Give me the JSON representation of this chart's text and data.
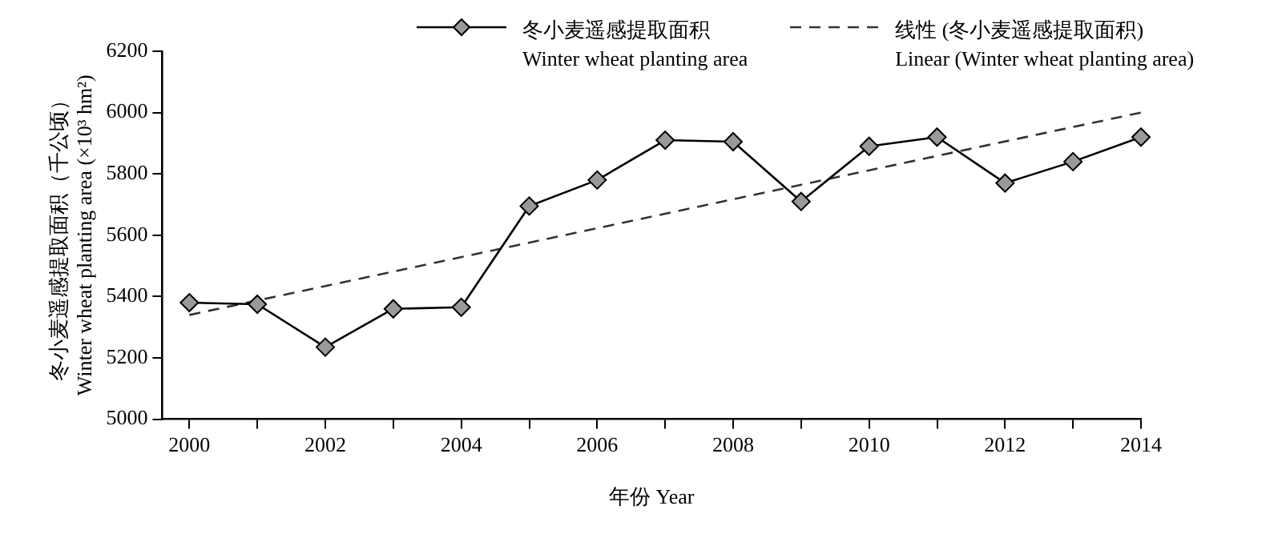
{
  "chart_data": {
    "type": "line",
    "xlabel": "年份 Year",
    "ylabel": [
      "冬小麦遥感提取面积（千公顷）",
      "Winter wheat planting area (×10³ hm²)"
    ],
    "x": [
      2000,
      2001,
      2002,
      2003,
      2004,
      2005,
      2006,
      2007,
      2008,
      2009,
      2010,
      2011,
      2012,
      2013,
      2014
    ],
    "series": [
      {
        "name": "冬小麦遥感提取面积\nWinter wheat planting area",
        "color": "#000000",
        "marker": "diamond",
        "line_style": "solid",
        "values": [
          5380,
          5375,
          5235,
          5360,
          5365,
          5695,
          5780,
          5910,
          5905,
          5710,
          5890,
          5920,
          5770,
          5840,
          5920
        ]
      },
      {
        "name": "线性 (冬小麦遥感提取面积)\nLinear (Winter wheat planting area)",
        "color": "#333333",
        "marker": "none",
        "line_style": "dashed",
        "x": [
          2000,
          2014
        ],
        "values": [
          5340,
          6000
        ]
      }
    ],
    "xlim": [
      1999.6,
      2014
    ],
    "xticks": [
      2000,
      {
        "value": 2001,
        "label": null
      },
      2002,
      {
        "value": 2003,
        "label": null
      },
      2004,
      {
        "value": 2005,
        "label": null
      },
      2006,
      {
        "value": 2007,
        "label": null
      },
      2008,
      {
        "value": 2009,
        "label": null
      },
      2010,
      {
        "value": 2011,
        "label": null
      },
      2012,
      {
        "value": 2013,
        "label": null
      },
      2014
    ],
    "ylim": [
      5000,
      6200
    ],
    "yticks": [
      5000,
      5200,
      5400,
      5600,
      5800,
      6000,
      6200
    ],
    "grid": false,
    "legend": "top"
  }
}
